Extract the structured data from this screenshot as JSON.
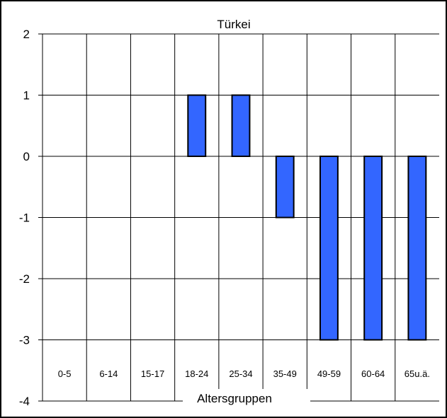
{
  "chart_data": {
    "type": "bar",
    "title": "Türkei",
    "xlabel": "Altersgruppen",
    "ylabel": "",
    "categories": [
      "0-5",
      "6-14",
      "15-17",
      "18-24",
      "25-34",
      "35-49",
      "49-59",
      "60-64",
      "65u.ä."
    ],
    "values": [
      null,
      null,
      null,
      1,
      1,
      -1,
      -3,
      -3,
      -3
    ],
    "ylim": [
      -4,
      2
    ],
    "yticks": [
      "2",
      "1",
      "0",
      "-1",
      "-2",
      "-3",
      "-4"
    ],
    "grid": true,
    "legend": "none",
    "bar_color": "#3366ff"
  }
}
